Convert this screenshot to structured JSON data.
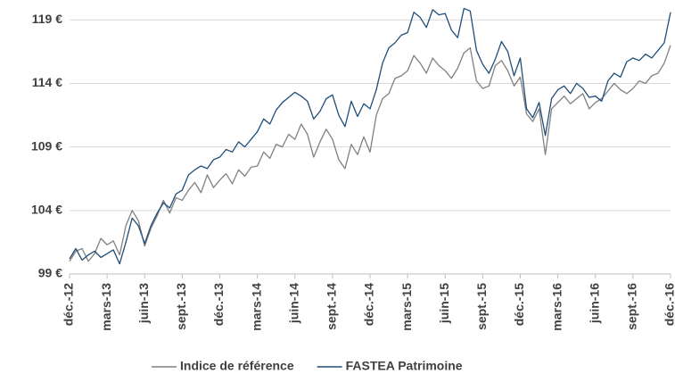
{
  "chart_data": {
    "type": "line",
    "categories": [
      "déc.-12",
      null,
      null,
      null,
      null,
      null,
      "mars-13",
      null,
      null,
      null,
      null,
      null,
      "juin-13",
      null,
      null,
      null,
      null,
      null,
      "sept.-13",
      null,
      null,
      null,
      null,
      null,
      "déc.-13",
      null,
      null,
      null,
      null,
      null,
      "mars-14",
      null,
      null,
      null,
      null,
      null,
      "juin-14",
      null,
      null,
      null,
      null,
      null,
      "sept.-14",
      null,
      null,
      null,
      null,
      null,
      "déc.-14",
      null,
      null,
      null,
      null,
      null,
      "mars-15",
      null,
      null,
      null,
      null,
      null,
      "juin-15",
      null,
      null,
      null,
      null,
      null,
      "sept.-15",
      null,
      null,
      null,
      null,
      null,
      "déc.-15",
      null,
      null,
      null,
      null,
      null,
      "mars-16",
      null,
      null,
      null,
      null,
      null,
      "juin-16",
      null,
      null,
      null,
      null,
      null,
      "sept.-16",
      null,
      null,
      null,
      null,
      null,
      "déc.-16"
    ],
    "series": [
      {
        "name": "Indice de référence",
        "color": "#808080",
        "values": [
          100.0,
          100.8,
          101.0,
          100.0,
          100.6,
          101.8,
          101.3,
          101.6,
          100.5,
          102.8,
          104.0,
          103.2,
          101.2,
          102.6,
          103.6,
          104.8,
          103.8,
          105.0,
          104.8,
          105.6,
          106.2,
          105.4,
          106.8,
          105.8,
          106.4,
          106.9,
          106.1,
          107.2,
          106.7,
          107.4,
          107.5,
          108.6,
          108.1,
          109.2,
          109.0,
          110.0,
          109.6,
          110.8,
          110.0,
          108.2,
          109.4,
          110.4,
          109.6,
          108.0,
          107.3,
          109.2,
          108.4,
          109.8,
          108.6,
          111.5,
          112.8,
          113.2,
          114.4,
          114.6,
          115.0,
          116.2,
          115.6,
          114.8,
          116.0,
          115.4,
          115.0,
          114.4,
          115.2,
          116.4,
          116.8,
          114.2,
          113.6,
          113.8,
          115.4,
          115.8,
          115.0,
          113.8,
          114.5,
          111.6,
          111.0,
          112.0,
          108.4,
          112.0,
          112.5,
          113.0,
          112.4,
          112.8,
          113.2,
          112.0,
          112.5,
          112.8,
          113.4,
          114.0,
          113.5,
          113.2,
          113.6,
          114.2,
          114.0,
          114.6,
          114.8,
          115.6,
          117.0
        ]
      },
      {
        "name": "FASTEA Patrimoine",
        "color": "#1f4e79",
        "values": [
          100.2,
          101.0,
          100.1,
          100.5,
          100.8,
          100.3,
          100.6,
          100.9,
          99.8,
          101.5,
          103.4,
          102.8,
          101.4,
          102.8,
          103.8,
          104.6,
          104.2,
          105.3,
          105.6,
          106.8,
          107.2,
          107.5,
          107.3,
          108.0,
          108.2,
          108.8,
          108.6,
          109.4,
          109.0,
          109.6,
          110.2,
          111.2,
          110.8,
          111.9,
          112.5,
          112.9,
          113.3,
          113.0,
          112.6,
          111.2,
          111.8,
          112.8,
          113.1,
          111.5,
          110.6,
          112.6,
          111.4,
          112.4,
          112.0,
          113.5,
          115.6,
          116.8,
          117.2,
          117.8,
          118.0,
          119.6,
          119.2,
          118.4,
          119.8,
          119.4,
          119.5,
          118.2,
          117.6,
          119.9,
          119.7,
          116.6,
          115.5,
          114.8,
          115.9,
          117.3,
          116.5,
          114.6,
          116.0,
          112.0,
          111.3,
          112.5,
          109.9,
          112.8,
          113.5,
          113.8,
          113.2,
          114.0,
          113.6,
          112.9,
          113.0,
          112.6,
          114.2,
          114.8,
          114.5,
          115.7,
          116.0,
          115.8,
          116.3,
          116.0,
          116.6,
          117.2,
          119.6
        ]
      }
    ],
    "ylim": [
      99,
      119.3
    ],
    "yticks": [
      {
        "value": 99,
        "label": "99 €"
      },
      {
        "value": 104,
        "label": "104 €"
      },
      {
        "value": 109,
        "label": "109 €"
      },
      {
        "value": 114,
        "label": "114 €"
      },
      {
        "value": 119,
        "label": "119 €"
      }
    ],
    "grid": true,
    "legend": "bottom"
  }
}
